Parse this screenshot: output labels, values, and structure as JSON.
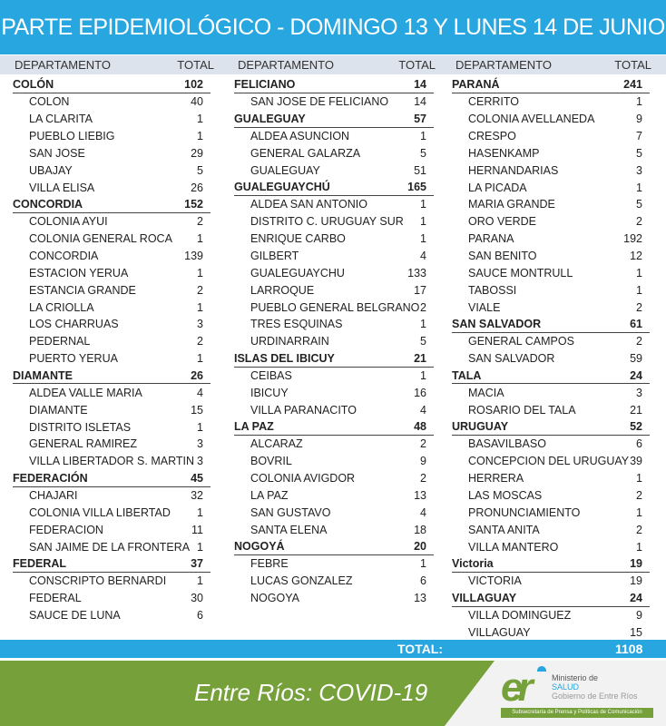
{
  "title": "PARTE EPIDEMIOLÓGICO - DOMINGO 13 Y LUNES 14 DE JUNIO",
  "header": {
    "department": "DEPARTAMENTO",
    "total": "TOTAL"
  },
  "columns": [
    [
      {
        "name": "COLÓN",
        "total": "102",
        "localities": [
          [
            "COLON",
            "40"
          ],
          [
            "LA CLARITA",
            "1"
          ],
          [
            "PUEBLO LIEBIG",
            "1"
          ],
          [
            "SAN JOSE",
            "29"
          ],
          [
            "UBAJAY",
            "5"
          ],
          [
            "VILLA ELISA",
            "26"
          ]
        ]
      },
      {
        "name": "CONCORDIA",
        "total": "152",
        "localities": [
          [
            "COLONIA AYUI",
            "2"
          ],
          [
            "COLONIA GENERAL ROCA",
            "1"
          ],
          [
            "CONCORDIA",
            "139"
          ],
          [
            "ESTACION YERUA",
            "1"
          ],
          [
            "ESTANCIA GRANDE",
            "2"
          ],
          [
            "LA CRIOLLA",
            "1"
          ],
          [
            "LOS CHARRUAS",
            "3"
          ],
          [
            "PEDERNAL",
            "2"
          ],
          [
            "PUERTO YERUA",
            "1"
          ]
        ]
      },
      {
        "name": "DIAMANTE",
        "total": "26",
        "localities": [
          [
            "ALDEA VALLE MARIA",
            "4"
          ],
          [
            "DIAMANTE",
            "15"
          ],
          [
            "DISTRITO ISLETAS",
            "1"
          ],
          [
            "GENERAL RAMIREZ",
            "3"
          ],
          [
            "VILLA LIBERTADOR S. MARTIN",
            "3"
          ]
        ]
      },
      {
        "name": "FEDERACIÓN",
        "total": "45",
        "localities": [
          [
            "CHAJARI",
            "32"
          ],
          [
            "COLONIA VILLA LIBERTAD",
            "1"
          ],
          [
            "FEDERACION",
            "11"
          ],
          [
            "SAN JAIME DE LA FRONTERA",
            "1"
          ]
        ]
      },
      {
        "name": "FEDERAL",
        "total": "37",
        "localities": [
          [
            "CONSCRIPTO BERNARDI",
            "1"
          ],
          [
            "FEDERAL",
            "30"
          ],
          [
            "SAUCE DE LUNA",
            "6"
          ]
        ]
      }
    ],
    [
      {
        "name": "FELICIANO",
        "total": "14",
        "localities": [
          [
            "SAN JOSE DE FELICIANO",
            "14"
          ]
        ]
      },
      {
        "name": "GUALEGUAY",
        "total": "57",
        "localities": [
          [
            "ALDEA ASUNCION",
            "1"
          ],
          [
            "GENERAL GALARZA",
            "5"
          ],
          [
            "GUALEGUAY",
            "51"
          ]
        ]
      },
      {
        "name": "GUALEGUAYCHÚ",
        "total": "165",
        "localities": [
          [
            "ALDEA SAN ANTONIO",
            "1"
          ],
          [
            "DISTRITO C. URUGUAY SUR",
            "1"
          ],
          [
            "ENRIQUE CARBO",
            "1"
          ],
          [
            "GILBERT",
            "4"
          ],
          [
            "GUALEGUAYCHU",
            "133"
          ],
          [
            "LARROQUE",
            "17"
          ],
          [
            "PUEBLO GENERAL BELGRANO",
            "2"
          ],
          [
            "TRES ESQUINAS",
            "1"
          ],
          [
            "URDINARRAIN",
            "5"
          ]
        ]
      },
      {
        "name": "ISLAS DEL IBICUY",
        "total": "21",
        "localities": [
          [
            "CEIBAS",
            "1"
          ],
          [
            "IBICUY",
            "16"
          ],
          [
            "VILLA PARANACITO",
            "4"
          ]
        ]
      },
      {
        "name": "LA PAZ",
        "total": "48",
        "localities": [
          [
            "ALCARAZ",
            "2"
          ],
          [
            "BOVRIL",
            "9"
          ],
          [
            "COLONIA AVIGDOR",
            "2"
          ],
          [
            "LA PAZ",
            "13"
          ],
          [
            "SAN GUSTAVO",
            "4"
          ],
          [
            "SANTA ELENA",
            "18"
          ]
        ]
      },
      {
        "name": "NOGOYÁ",
        "total": "20",
        "localities": [
          [
            "FEBRE",
            "1"
          ],
          [
            "LUCAS GONZALEZ",
            "6"
          ],
          [
            "NOGOYA",
            "13"
          ]
        ]
      }
    ],
    [
      {
        "name": "PARANÁ",
        "total": "241",
        "localities": [
          [
            "CERRITO",
            "1"
          ],
          [
            "COLONIA AVELLANEDA",
            "9"
          ],
          [
            "CRESPO",
            "7"
          ],
          [
            "HASENKAMP",
            "5"
          ],
          [
            "HERNANDARIAS",
            "3"
          ],
          [
            "LA PICADA",
            "1"
          ],
          [
            "MARIA GRANDE",
            "5"
          ],
          [
            "ORO VERDE",
            "2"
          ],
          [
            "PARANA",
            "192"
          ],
          [
            "SAN BENITO",
            "12"
          ],
          [
            "SAUCE MONTRULL",
            "1"
          ],
          [
            "TABOSSI",
            "1"
          ],
          [
            "VIALE",
            "2"
          ]
        ]
      },
      {
        "name": "SAN SALVADOR",
        "total": "61",
        "localities": [
          [
            "GENERAL CAMPOS",
            "2"
          ],
          [
            "SAN SALVADOR",
            "59"
          ]
        ]
      },
      {
        "name": "TALA",
        "total": "24",
        "localities": [
          [
            "MACIA",
            "3"
          ],
          [
            "ROSARIO DEL TALA",
            "21"
          ]
        ]
      },
      {
        "name": "URUGUAY",
        "total": "52",
        "localities": [
          [
            "BASAVILBASO",
            "6"
          ],
          [
            "CONCEPCION DEL URUGUAY",
            "39"
          ],
          [
            "HERRERA",
            "1"
          ],
          [
            "LAS MOSCAS",
            "2"
          ],
          [
            "PRONUNCIAMIENTO",
            "1"
          ],
          [
            "SANTA ANITA",
            "2"
          ],
          [
            "VILLA MANTERO",
            "1"
          ]
        ]
      },
      {
        "name": "Victoria",
        "total": "19",
        "localities": [
          [
            "VICTORIA",
            "19"
          ]
        ]
      },
      {
        "name": "VILLAGUAY",
        "total": "24",
        "localities": [
          [
            "VILLA DOMINGUEZ",
            "9"
          ],
          [
            "VILLAGUAY",
            "15"
          ]
        ]
      }
    ]
  ],
  "total": {
    "label": "TOTAL:",
    "value": "1108"
  },
  "footer": {
    "text": "Entre Ríos: COVID-19",
    "logo": {
      "mark": "er",
      "line1": "Ministerio de",
      "line2": "SALUD",
      "line3": "Gobierno de Entre Ríos",
      "band": "Subsecretaría de Prensa y Políticas de Comunicación"
    }
  },
  "colors": {
    "blue": "#27a6df",
    "green": "#76a03a"
  }
}
